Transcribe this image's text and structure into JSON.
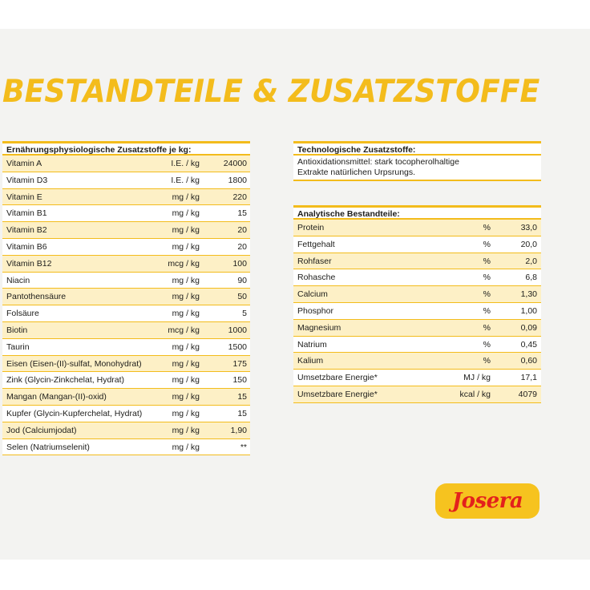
{
  "title": "BESTANDTEILE & ZUSATZSTOFFE",
  "left_table": {
    "header": "Ernährungsphysiologische Zusatzstoffe je kg:",
    "rows": [
      {
        "name": "Vitamin A",
        "unit": "I.E. / kg",
        "value": "24000"
      },
      {
        "name": "Vitamin D3",
        "unit": "I.E. / kg",
        "value": "1800"
      },
      {
        "name": "Vitamin E",
        "unit": "mg / kg",
        "value": "220"
      },
      {
        "name": "Vitamin B1",
        "unit": "mg / kg",
        "value": "15"
      },
      {
        "name": "Vitamin B2",
        "unit": "mg / kg",
        "value": "20"
      },
      {
        "name": "Vitamin B6",
        "unit": "mg / kg",
        "value": "20"
      },
      {
        "name": "Vitamin B12",
        "unit": "mcg / kg",
        "value": "100"
      },
      {
        "name": "Niacin",
        "unit": "mg / kg",
        "value": "90"
      },
      {
        "name": "Pantothensäure",
        "unit": "mg / kg",
        "value": "50"
      },
      {
        "name": "Folsäure",
        "unit": "mg / kg",
        "value": "5"
      },
      {
        "name": "Biotin",
        "unit": "mcg / kg",
        "value": "1000"
      },
      {
        "name": "Taurin",
        "unit": "mg / kg",
        "value": "1500"
      },
      {
        "name": "Eisen (Eisen-(II)-sulfat, Monohydrat)",
        "unit": "mg / kg",
        "value": "175"
      },
      {
        "name": "Zink (Glycin-Zinkchelat, Hydrat)",
        "unit": "mg / kg",
        "value": "150"
      },
      {
        "name": "Mangan (Mangan-(II)-oxid)",
        "unit": "mg / kg",
        "value": "15"
      },
      {
        "name": "Kupfer (Glycin-Kupferchelat, Hydrat)",
        "unit": "mg / kg",
        "value": "15"
      },
      {
        "name": "Jod (Calciumjodat)",
        "unit": "mg / kg",
        "value": "1,90"
      },
      {
        "name": "Selen (Natriumselenit)",
        "unit": "mg / kg",
        "value": "**"
      }
    ]
  },
  "tech_table": {
    "header": "Technologische Zusatzstoffe:",
    "line1": "Antioxidationsmittel: stark tocopherolhaltige",
    "line2": "Extrakte natürlichen Urpsrungs."
  },
  "analytic_table": {
    "header": "Analytische Bestandteile:",
    "rows": [
      {
        "name": "Protein",
        "unit": "%",
        "value": "33,0"
      },
      {
        "name": "Fettgehalt",
        "unit": "%",
        "value": "20,0"
      },
      {
        "name": "Rohfaser",
        "unit": "%",
        "value": "2,0"
      },
      {
        "name": "Rohasche",
        "unit": "%",
        "value": "6,8"
      },
      {
        "name": "Calcium",
        "unit": "%",
        "value": "1,30"
      },
      {
        "name": "Phosphor",
        "unit": "%",
        "value": "1,00"
      },
      {
        "name": "Magnesium",
        "unit": "%",
        "value": "0,09"
      },
      {
        "name": "Natrium",
        "unit": "%",
        "value": "0,45"
      },
      {
        "name": "Kalium",
        "unit": "%",
        "value": "0,60"
      },
      {
        "name": "Umsetzbare Energie*",
        "unit": "MJ / kg",
        "value": "17,1"
      },
      {
        "name": "Umsetzbare Energie*",
        "unit": "kcal / kg",
        "value": "4079"
      }
    ]
  },
  "logo": {
    "text": "Josera"
  },
  "colors": {
    "accent": "#f3bc1c",
    "row_tint": "#fdf0c6",
    "logo_red": "#e3211c",
    "panel": "#f3f3f1"
  }
}
